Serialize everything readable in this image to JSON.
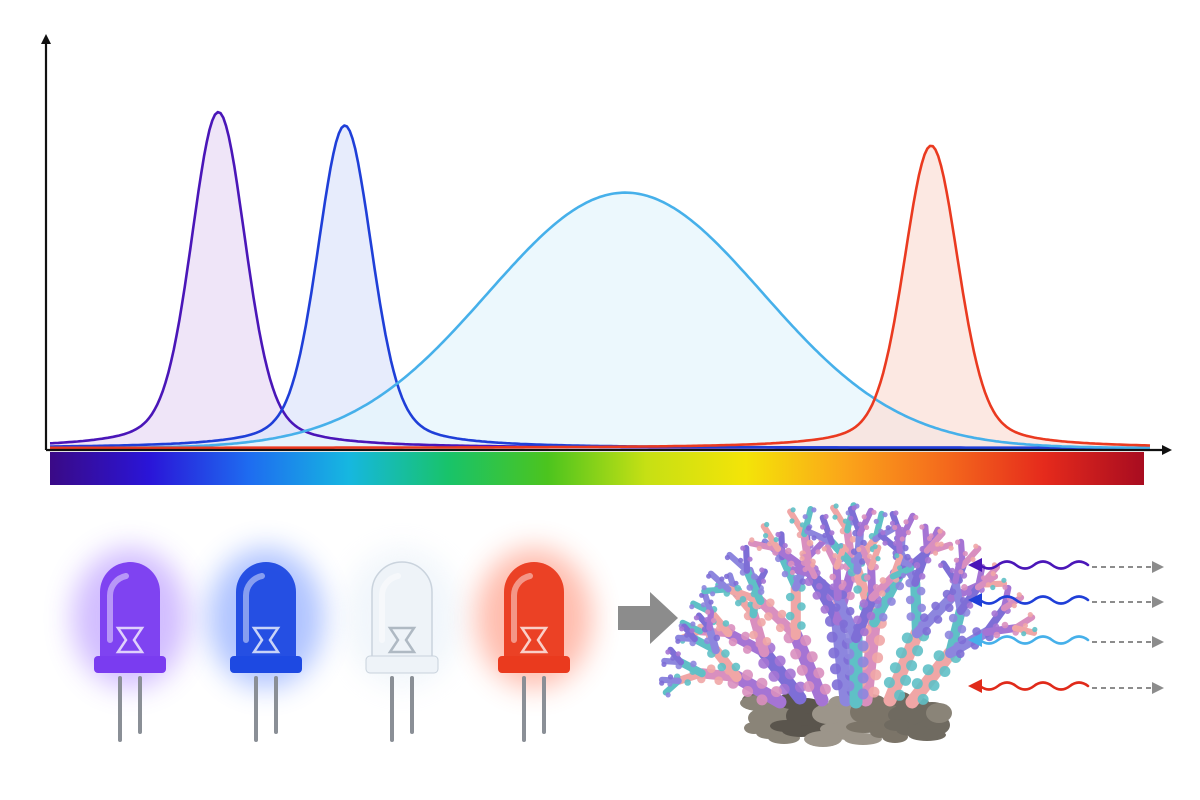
{
  "spectrum_plot": {
    "axes": {
      "x_arrow": true,
      "y_arrow": true,
      "tick_labels": [],
      "axis_labels": []
    },
    "emission_peaks": [
      {
        "id": "violet",
        "color": "#4a16b8",
        "fill": "#eadcf6",
        "peak_position": 0.153,
        "relative_height": 1.0,
        "width": "narrow"
      },
      {
        "id": "royal-blue",
        "color": "#1f3fd8",
        "fill": "#dfe6fb",
        "peak_position": 0.268,
        "relative_height": 0.96,
        "width": "narrow"
      },
      {
        "id": "cool-white",
        "color": "#46b0ea",
        "fill": "#e6f5fc",
        "peak_position": 0.523,
        "relative_height": 0.76,
        "width": "broad"
      },
      {
        "id": "red",
        "color": "#ea3a20",
        "fill": "#fbe0d8",
        "peak_position": 0.801,
        "relative_height": 0.9,
        "width": "narrow"
      }
    ],
    "color_bar_gradient": [
      "#3a0a86",
      "#2a15d8",
      "#1e6cf0",
      "#16b7e0",
      "#18c36a",
      "#4cc41e",
      "#c6e014",
      "#f4e408",
      "#fba51a",
      "#f46a1c",
      "#e52a1c",
      "#a80c20"
    ]
  },
  "leds": [
    {
      "id": "violet-led",
      "body_color": "#7a3cf0",
      "glow_color": "#9a6cff"
    },
    {
      "id": "blue-led",
      "body_color": "#1d49e2",
      "glow_color": "#4f7bff"
    },
    {
      "id": "white-led",
      "body_color": "#eef3f8",
      "glow_color": "#d8e6f4"
    },
    {
      "id": "red-led",
      "body_color": "#ea3a1e",
      "glow_color": "#ff6a48"
    }
  ],
  "flow_arrow": {
    "color": "#8c8c8c"
  },
  "coral": {
    "colors": [
      "#7e6ed6",
      "#a574d4",
      "#d98fbf",
      "#f0a6a6",
      "#5fc0c6",
      "#8d86de"
    ]
  },
  "reflections": [
    {
      "id": "violet-reflection",
      "color": "#4a16b8"
    },
    {
      "id": "blue-reflection",
      "color": "#1f3fd8"
    },
    {
      "id": "cyan-reflection",
      "color": "#46b0ea"
    },
    {
      "id": "red-reflection",
      "color": "#e02a1a"
    }
  ]
}
